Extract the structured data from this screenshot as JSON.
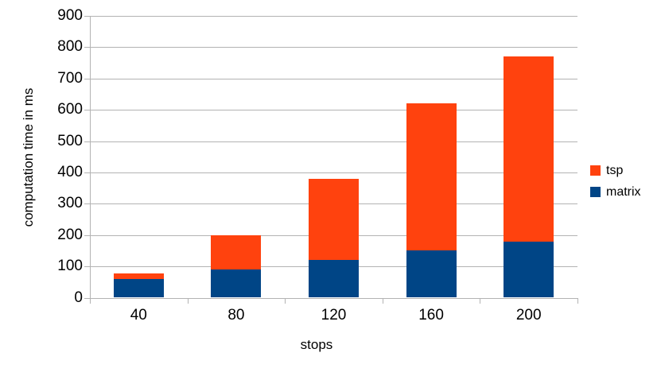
{
  "chart_data": {
    "type": "bar",
    "stacked": true,
    "title": "",
    "xlabel": "stops",
    "ylabel": "computation time in ms",
    "categories": [
      "40",
      "80",
      "120",
      "160",
      "200"
    ],
    "series": [
      {
        "name": "matrix",
        "color": "#004586",
        "values": [
          60,
          90,
          120,
          150,
          180
        ]
      },
      {
        "name": "tsp",
        "color": "#FF420E",
        "values": [
          18,
          110,
          260,
          470,
          590
        ]
      }
    ],
    "ylim": [
      0,
      900
    ],
    "ytick_step": 100,
    "ytick_labels": [
      "0",
      "100",
      "200",
      "300",
      "400",
      "500",
      "600",
      "700",
      "800",
      "900"
    ],
    "grid": "horizontal",
    "legend_position": "right",
    "legend_order": [
      "tsp",
      "matrix"
    ],
    "colors": {
      "gridline": "#b3b3b3",
      "axis": "#b3b3b3",
      "text": "#000000",
      "background": "#ffffff"
    }
  }
}
